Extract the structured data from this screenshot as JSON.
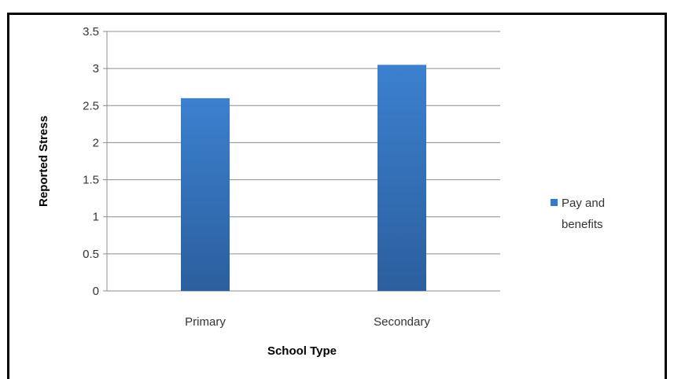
{
  "chart_data": {
    "type": "bar",
    "categories": [
      "Primary",
      "Secondary"
    ],
    "series": [
      {
        "name": "Pay and benefits",
        "values": [
          2.6,
          3.05
        ],
        "color": "#3b78c4"
      }
    ],
    "xlabel": "School Type",
    "ylabel": "Reported Stress",
    "ylim": [
      0,
      3.5
    ],
    "yticks": [
      "0",
      "0.5",
      "1",
      "1.5",
      "2",
      "2.5",
      "3",
      "3.5"
    ],
    "grid": true,
    "legend_position": "right",
    "legend_lines": [
      "Pay and",
      "benefits"
    ]
  }
}
